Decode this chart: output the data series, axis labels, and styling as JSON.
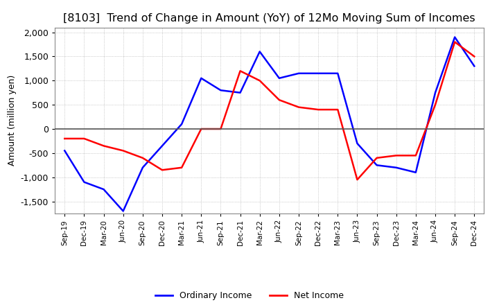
{
  "title": "[8103]  Trend of Change in Amount (YoY) of 12Mo Moving Sum of Incomes",
  "ylabel": "Amount (million yen)",
  "ylim": [
    -1750,
    2100
  ],
  "yticks": [
    -1500,
    -1000,
    -500,
    0,
    500,
    1000,
    1500,
    2000
  ],
  "x_labels": [
    "Sep-19",
    "Dec-19",
    "Mar-20",
    "Jun-20",
    "Sep-20",
    "Dec-20",
    "Mar-21",
    "Jun-21",
    "Sep-21",
    "Dec-21",
    "Mar-22",
    "Jun-22",
    "Sep-22",
    "Dec-22",
    "Mar-23",
    "Jun-23",
    "Sep-23",
    "Dec-23",
    "Mar-24",
    "Jun-24",
    "Sep-24",
    "Dec-24"
  ],
  "ordinary_income": [
    -450,
    -1100,
    -1250,
    -1700,
    -800,
    -350,
    100,
    1050,
    800,
    750,
    1600,
    1050,
    1150,
    1150,
    1150,
    -300,
    -750,
    -800,
    -900,
    750,
    1900,
    1300
  ],
  "net_income": [
    -200,
    -200,
    -350,
    -450,
    -600,
    -850,
    -800,
    0,
    0,
    1200,
    1000,
    600,
    450,
    400,
    400,
    -1050,
    -600,
    -550,
    -550,
    500,
    1800,
    1500
  ],
  "ordinary_color": "#0000ff",
  "net_color": "#ff0000",
  "background_color": "#ffffff",
  "grid_color": "#aaaaaa",
  "title_fontsize": 11.5,
  "legend_labels": [
    "Ordinary Income",
    "Net Income"
  ]
}
